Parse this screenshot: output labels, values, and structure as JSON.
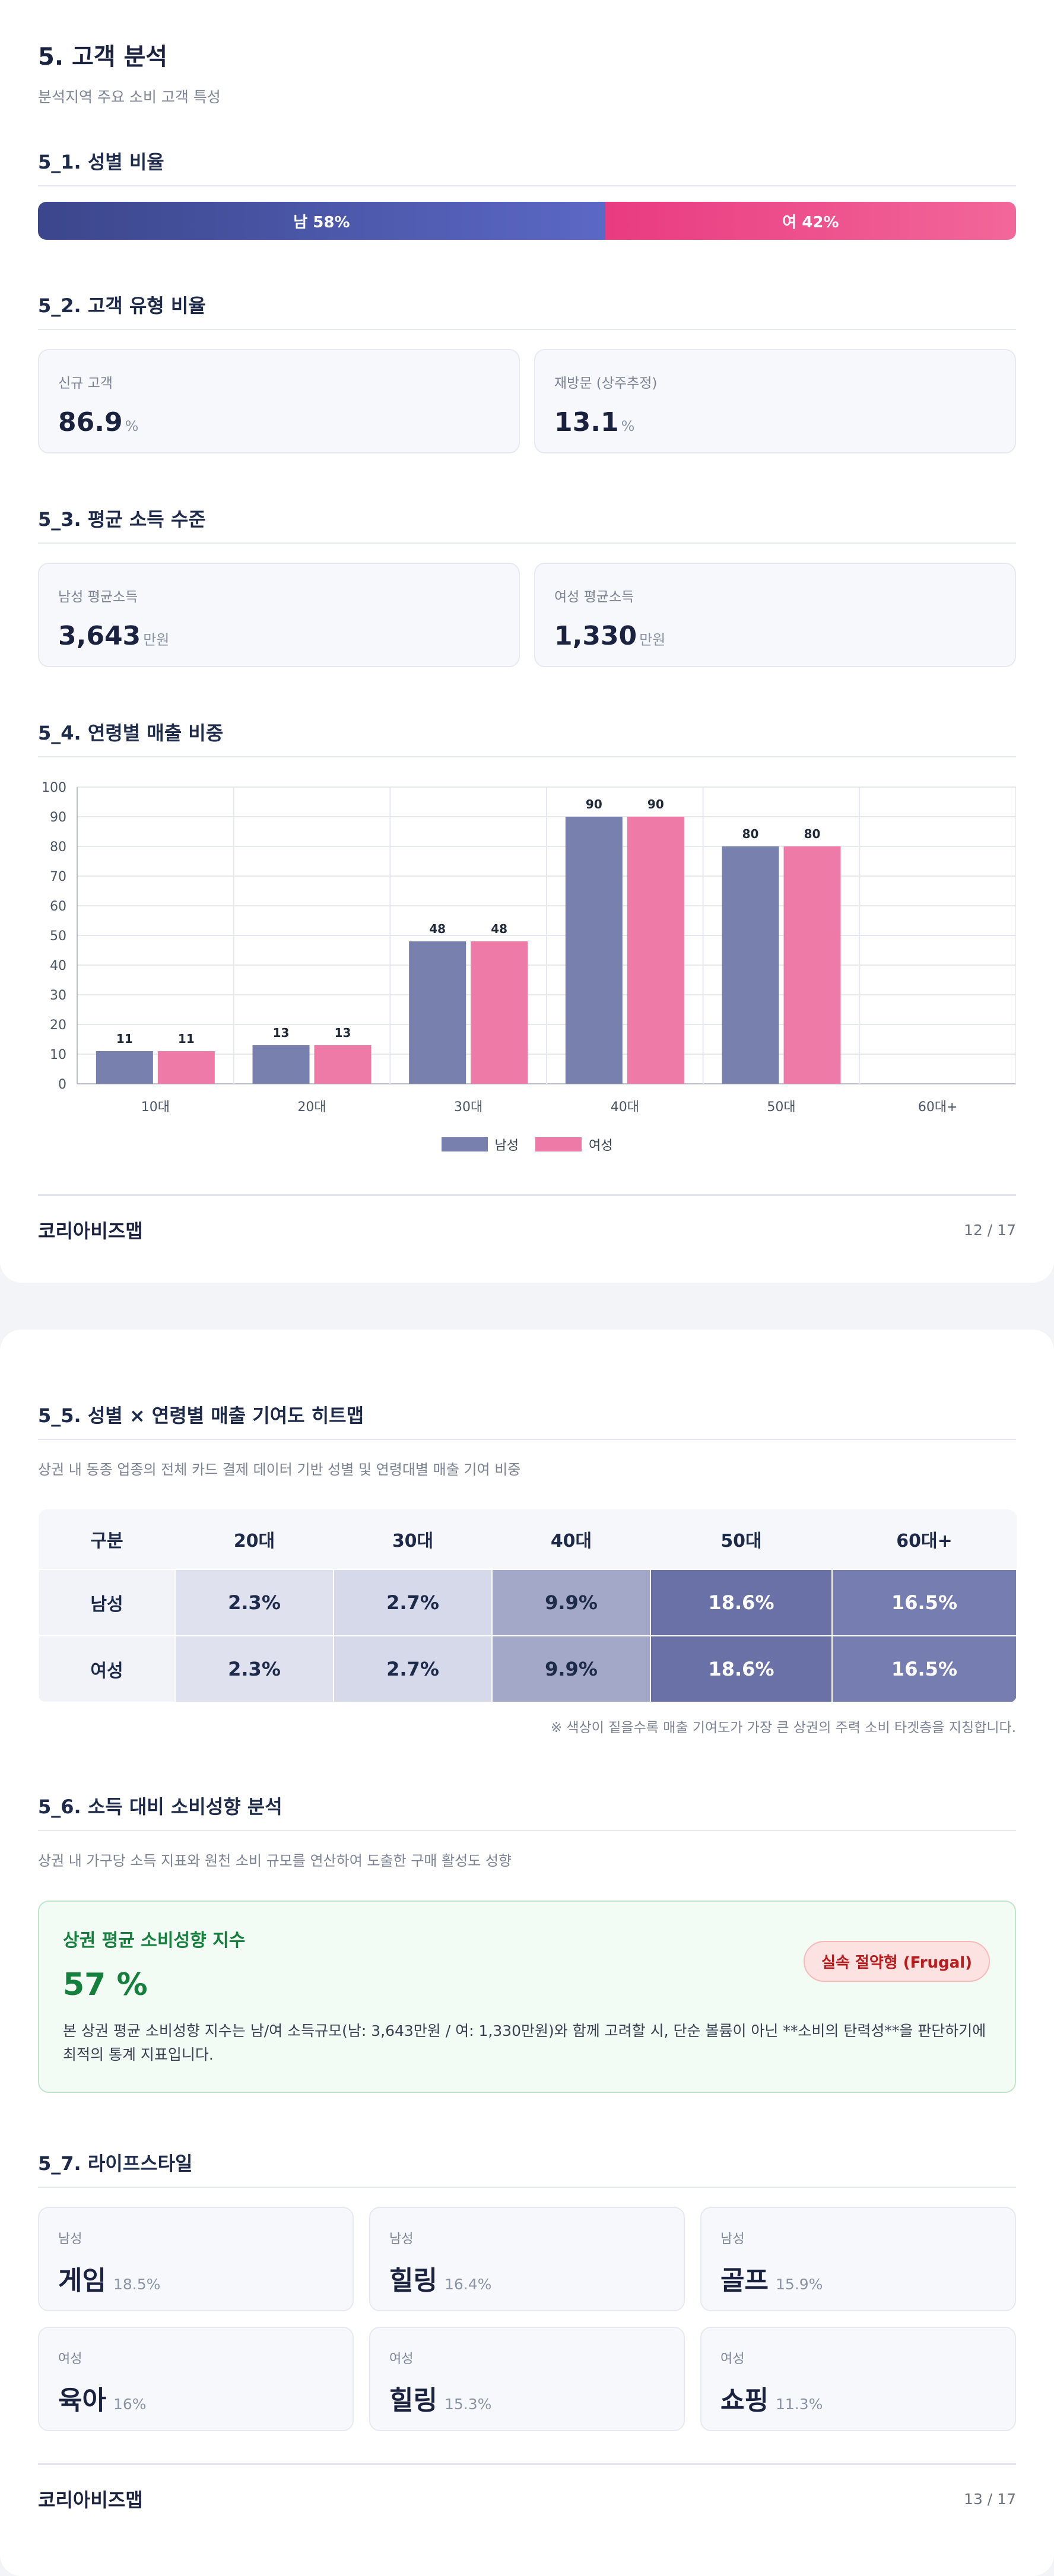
{
  "page1": {
    "title": "5. 고객 분석",
    "subtitle": "분석지역 주요 소비 고객 특성",
    "gender": {
      "heading": "5_1. 성별 비율",
      "male_label": "남 58%",
      "male_pct": 58,
      "female_label": "여 42%",
      "female_pct": 42
    },
    "customer_type": {
      "heading": "5_2. 고객 유형 비율",
      "cards": [
        {
          "label": "신규 고객",
          "value": "86.9",
          "unit": "%"
        },
        {
          "label": "재방문 (상주추정)",
          "value": "13.1",
          "unit": "%"
        }
      ]
    },
    "income": {
      "heading": "5_3. 평균 소득 수준",
      "cards": [
        {
          "label": "남성 평균소득",
          "value": "3,643",
          "unit": "만원"
        },
        {
          "label": "여성 평균소득",
          "value": "1,330",
          "unit": "만원"
        }
      ]
    },
    "age_sales": {
      "heading": "5_4. 연령별 매출 비중"
    },
    "footer": {
      "brand": "코리아비즈맵",
      "page": "12 / 17"
    }
  },
  "chart_data": {
    "type": "bar",
    "categories": [
      "10대",
      "20대",
      "30대",
      "40대",
      "50대",
      "60대+"
    ],
    "series": [
      {
        "name": "남성",
        "values": [
          11,
          13,
          48,
          90,
          80,
          null
        ],
        "color": "#7880ad"
      },
      {
        "name": "여성",
        "values": [
          11,
          13,
          48,
          90,
          80,
          null
        ],
        "color": "#ee7aa8"
      }
    ],
    "ylim": [
      0,
      100
    ],
    "yticks": [
      0,
      10,
      20,
      30,
      40,
      50,
      60,
      70,
      80,
      90,
      100
    ],
    "grid": true,
    "legend": "bottom"
  },
  "page2": {
    "heatmap": {
      "heading": "5_5. 성별 × 연령별 매출 기여도 히트맵",
      "desc": "상권 내 동종 업종의 전체 카드 결제 데이터 기반 성별 및 연령대별 매출 기여 비중",
      "columns": [
        "구분",
        "20대",
        "30대",
        "40대",
        "50대",
        "60대+"
      ],
      "rows": [
        {
          "label": "남성",
          "cells": [
            "2.3%",
            "2.7%",
            "9.9%",
            "18.6%",
            "16.5%"
          ]
        },
        {
          "label": "여성",
          "cells": [
            "2.3%",
            "2.7%",
            "9.9%",
            "18.6%",
            "16.5%"
          ]
        }
      ],
      "cell_colors": [
        "#dfe1ee",
        "#d6d9ea",
        "#a3a8c9",
        "#6a71a6",
        "#767db0"
      ],
      "cell_text_colors": [
        "#1e2a4a",
        "#1e2a4a",
        "#1e2a4a",
        "#ffffff",
        "#ffffff"
      ],
      "note": "※ 색상이 짙을수록 매출 기여도가 가장 큰 상권의 주력 소비 타겟층을 지칭합니다."
    },
    "consumption": {
      "heading": "5_6. 소득 대비 소비성향 분석",
      "desc": "상권 내 가구당 소득 지표와 원천 소비 규모를 연산하여 도출한 구매 활성도 성향",
      "card_title": "상권 평균 소비성향 지수",
      "value": "57 %",
      "badge": "실속 절약형 (Frugal)",
      "body": "본 상권 평균 소비성향 지수는 남/여 소득규모(남: 3,643만원 / 여: 1,330만원)와 함께 고려할 시, 단순 볼륨이 아닌 **소비의 탄력성**을 판단하기에 최적의 통계 지표입니다."
    },
    "lifestyle": {
      "heading": "5_7. 라이프스타일",
      "cards": [
        {
          "gender": "남성",
          "name": "게임",
          "pct": "18.5%"
        },
        {
          "gender": "남성",
          "name": "힐링",
          "pct": "16.4%"
        },
        {
          "gender": "남성",
          "name": "골프",
          "pct": "15.9%"
        },
        {
          "gender": "여성",
          "name": "육아",
          "pct": "16%"
        },
        {
          "gender": "여성",
          "name": "힐링",
          "pct": "15.3%"
        },
        {
          "gender": "여성",
          "name": "쇼핑",
          "pct": "11.3%"
        }
      ]
    },
    "footer": {
      "brand": "코리아비즈맵",
      "page": "13 / 17"
    }
  }
}
